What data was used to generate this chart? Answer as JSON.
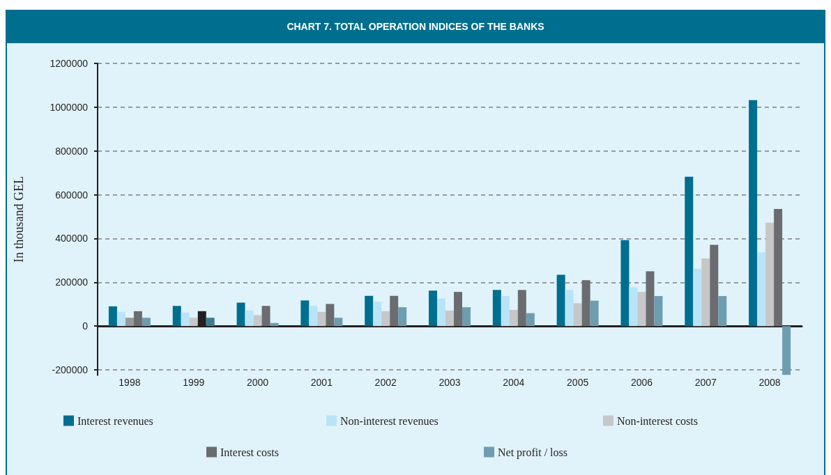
{
  "chart_data": {
    "type": "bar",
    "title": "CHART 7. TOTAL OPERATION INDICES OF THE BANKS",
    "ylabel": "In thousand GEL",
    "categories": [
      "1998",
      "1999",
      "2000",
      "2001",
      "2002",
      "2003",
      "2004",
      "2005",
      "2006",
      "2007",
      "2008"
    ],
    "series": [
      {
        "name": "Interest revenues",
        "color": "#006e8f",
        "values": [
          90000,
          92000,
          107000,
          117000,
          138000,
          162000,
          165000,
          234000,
          393000,
          682000,
          1032000
        ]
      },
      {
        "name": "Non-interest revenues",
        "color": "#b9e4f7",
        "values": [
          65000,
          62000,
          71000,
          92000,
          111000,
          126000,
          137000,
          165000,
          177000,
          262000,
          337000
        ]
      },
      {
        "name": "Non-interest costs",
        "color": "#c6c7c9",
        "colors": [
          "#98999b",
          "#c6c7c9",
          "#c6c7c9",
          "#c6c7c9",
          "#c6c7c9",
          "#c6c7c9",
          "#c6c7c9",
          "#c6c7c9",
          "#c6c7c9",
          "#c6c7c9",
          "#c6c7c9"
        ],
        "values": [
          38000,
          38000,
          50000,
          65000,
          68000,
          71000,
          74000,
          104000,
          156000,
          309000,
          472000
        ]
      },
      {
        "name": "Interest costs",
        "color": "#6b6c70",
        "colors": [
          "#6b6c70",
          "#231f20",
          "#6b6c70",
          "#6b6c70",
          "#6b6c70",
          "#6b6c70",
          "#6b6c70",
          "#6b6c70",
          "#6b6c70",
          "#6b6c70",
          "#6b6c70"
        ],
        "values": [
          68000,
          68000,
          92000,
          101000,
          138000,
          156000,
          165000,
          210000,
          250000,
          371000,
          535000
        ]
      },
      {
        "name": "Net profit / loss",
        "color": "#6e9db2",
        "colors": [
          "#6e9db2",
          "#3d7b94",
          "#6e9db2",
          "#6e9db2",
          "#6e9db2",
          "#6e9db2",
          "#6e9db2",
          "#6e9db2",
          "#6e9db2",
          "#6e9db2",
          "#6e9db2"
        ],
        "values": [
          38000,
          38000,
          14000,
          38000,
          86000,
          86000,
          59000,
          116000,
          137000,
          137000,
          -223000
        ]
      }
    ],
    "ylim": [
      -225000,
      1200000
    ],
    "yticks": [
      -200000,
      0,
      200000,
      400000,
      600000,
      800000,
      1000000,
      1200000
    ],
    "grid": "y",
    "legend": "bottom"
  }
}
